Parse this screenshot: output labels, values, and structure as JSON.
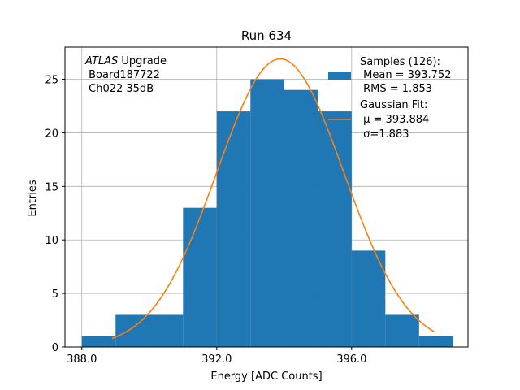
{
  "chart_data": {
    "type": "bar",
    "title": "Run 634",
    "xlabel": "Energy [ADC Counts]",
    "ylabel": "Entries",
    "xlim": [
      387.5,
      399.45
    ],
    "ylim": [
      0,
      28
    ],
    "grid": true,
    "xticks": [
      388,
      392,
      396
    ],
    "xtick_labels": [
      "388.0",
      "392.0",
      "396.0"
    ],
    "yticks": [
      0,
      5,
      10,
      15,
      20,
      25
    ],
    "ytick_labels": [
      "0",
      "5",
      "10",
      "15",
      "20",
      "25"
    ],
    "bin_edges": [
      388.0,
      389.0,
      390.0,
      391.0,
      392.0,
      393.0,
      394.0,
      395.0,
      396.0,
      397.0,
      398.0,
      399.0
    ],
    "counts": [
      1,
      3,
      3,
      13,
      22,
      25,
      24,
      22,
      9,
      3,
      1
    ],
    "bar_color": "#1f77b4",
    "fit": {
      "type": "gaussian",
      "mu": 393.884,
      "sigma": 1.883,
      "amplitude": 26.9,
      "x_range": [
        388.9,
        398.45
      ],
      "color": "#ff7f0e"
    },
    "annotation": {
      "line1_italic": "ATLAS",
      "line1_rest": " Upgrade",
      "line2": " Board187722",
      "line3": " Ch022 35dB"
    },
    "legend": {
      "position": "top-right",
      "hist_label": [
        "Samples (126):",
        " Mean = 393.752",
        " RMS = 1.853"
      ],
      "fit_label": [
        "Gaussian Fit:",
        " μ = 393.884",
        " σ=1.883"
      ]
    }
  }
}
